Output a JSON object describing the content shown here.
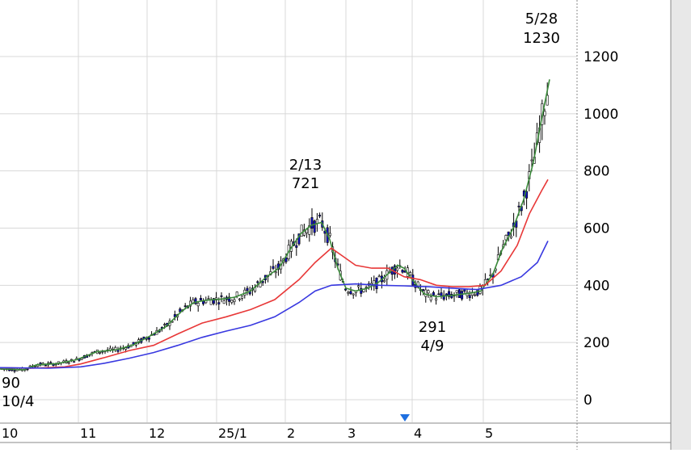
{
  "chart_data": {
    "type": "candlestick",
    "grid": true,
    "yaxis_position": "right",
    "y_ticks": [
      0,
      200,
      400,
      600,
      800,
      1000,
      1200
    ],
    "x_ticks": [
      "10",
      "11",
      "12",
      "25/1",
      "2",
      "3",
      "4",
      "5"
    ],
    "ylim": [
      -60,
      1390
    ],
    "annotations": [
      {
        "id": "high-2024-10-04",
        "value": "90",
        "date": "10/4",
        "y": 90
      },
      {
        "id": "high-2025-02-13",
        "date": "2/13",
        "value": "721",
        "y": 721
      },
      {
        "id": "low-2025-04-09",
        "value": "291",
        "date": "4/9",
        "y": 291
      },
      {
        "id": "high-2025-05-28",
        "date": "5/28",
        "value": "1230",
        "y": 1230
      }
    ],
    "marker": {
      "type": "triangle-down",
      "color": "#1e6fe0",
      "near": "3月下旬"
    },
    "series": [
      {
        "type": "moving-average",
        "color": "#3a8a3a",
        "points": [
          [
            0,
            108
          ],
          [
            30,
            105
          ],
          [
            45,
            122
          ],
          [
            70,
            126
          ],
          [
            95,
            140
          ],
          [
            120,
            168
          ],
          [
            145,
            175
          ],
          [
            165,
            192
          ],
          [
            185,
            222
          ],
          [
            205,
            255
          ],
          [
            225,
            310
          ],
          [
            240,
            340
          ],
          [
            255,
            348
          ],
          [
            275,
            352
          ],
          [
            290,
            358
          ],
          [
            310,
            380
          ],
          [
            330,
            430
          ],
          [
            345,
            460
          ],
          [
            360,
            530
          ],
          [
            372,
            580
          ],
          [
            385,
            610
          ],
          [
            398,
            620
          ],
          [
            408,
            560
          ],
          [
            418,
            460
          ],
          [
            428,
            390
          ],
          [
            440,
            380
          ],
          [
            455,
            390
          ],
          [
            468,
            410
          ],
          [
            480,
            440
          ],
          [
            492,
            470
          ],
          [
            500,
            460
          ],
          [
            510,
            420
          ],
          [
            525,
            370
          ],
          [
            540,
            360
          ],
          [
            560,
            365
          ],
          [
            580,
            372
          ],
          [
            595,
            380
          ],
          [
            610,
            440
          ],
          [
            622,
            530
          ],
          [
            635,
            600
          ],
          [
            648,
            700
          ],
          [
            660,
            830
          ],
          [
            670,
            980
          ],
          [
            680,
            1120
          ]
        ]
      },
      {
        "type": "moving-average",
        "color": "#e83838",
        "points": [
          [
            0,
            112
          ],
          [
            40,
            110
          ],
          [
            80,
            115
          ],
          [
            100,
            125
          ],
          [
            130,
            148
          ],
          [
            160,
            172
          ],
          [
            190,
            190
          ],
          [
            220,
            230
          ],
          [
            250,
            268
          ],
          [
            280,
            290
          ],
          [
            310,
            315
          ],
          [
            340,
            350
          ],
          [
            370,
            420
          ],
          [
            390,
            480
          ],
          [
            410,
            530
          ],
          [
            425,
            500
          ],
          [
            440,
            470
          ],
          [
            460,
            460
          ],
          [
            480,
            460
          ],
          [
            500,
            430
          ],
          [
            520,
            420
          ],
          [
            540,
            400
          ],
          [
            560,
            395
          ],
          [
            580,
            395
          ],
          [
            600,
            400
          ],
          [
            620,
            450
          ],
          [
            640,
            540
          ],
          [
            655,
            650
          ],
          [
            670,
            730
          ],
          [
            678,
            770
          ]
        ]
      },
      {
        "type": "moving-average",
        "color": "#3838e0",
        "points": [
          [
            0,
            112
          ],
          [
            60,
            110
          ],
          [
            100,
            115
          ],
          [
            130,
            128
          ],
          [
            160,
            145
          ],
          [
            190,
            165
          ],
          [
            220,
            190
          ],
          [
            250,
            218
          ],
          [
            280,
            240
          ],
          [
            310,
            260
          ],
          [
            340,
            290
          ],
          [
            370,
            340
          ],
          [
            390,
            380
          ],
          [
            410,
            400
          ],
          [
            440,
            405
          ],
          [
            470,
            400
          ],
          [
            500,
            398
          ],
          [
            530,
            395
          ],
          [
            560,
            390
          ],
          [
            590,
            385
          ],
          [
            620,
            400
          ],
          [
            645,
            430
          ],
          [
            665,
            480
          ],
          [
            678,
            555
          ]
        ]
      }
    ]
  }
}
